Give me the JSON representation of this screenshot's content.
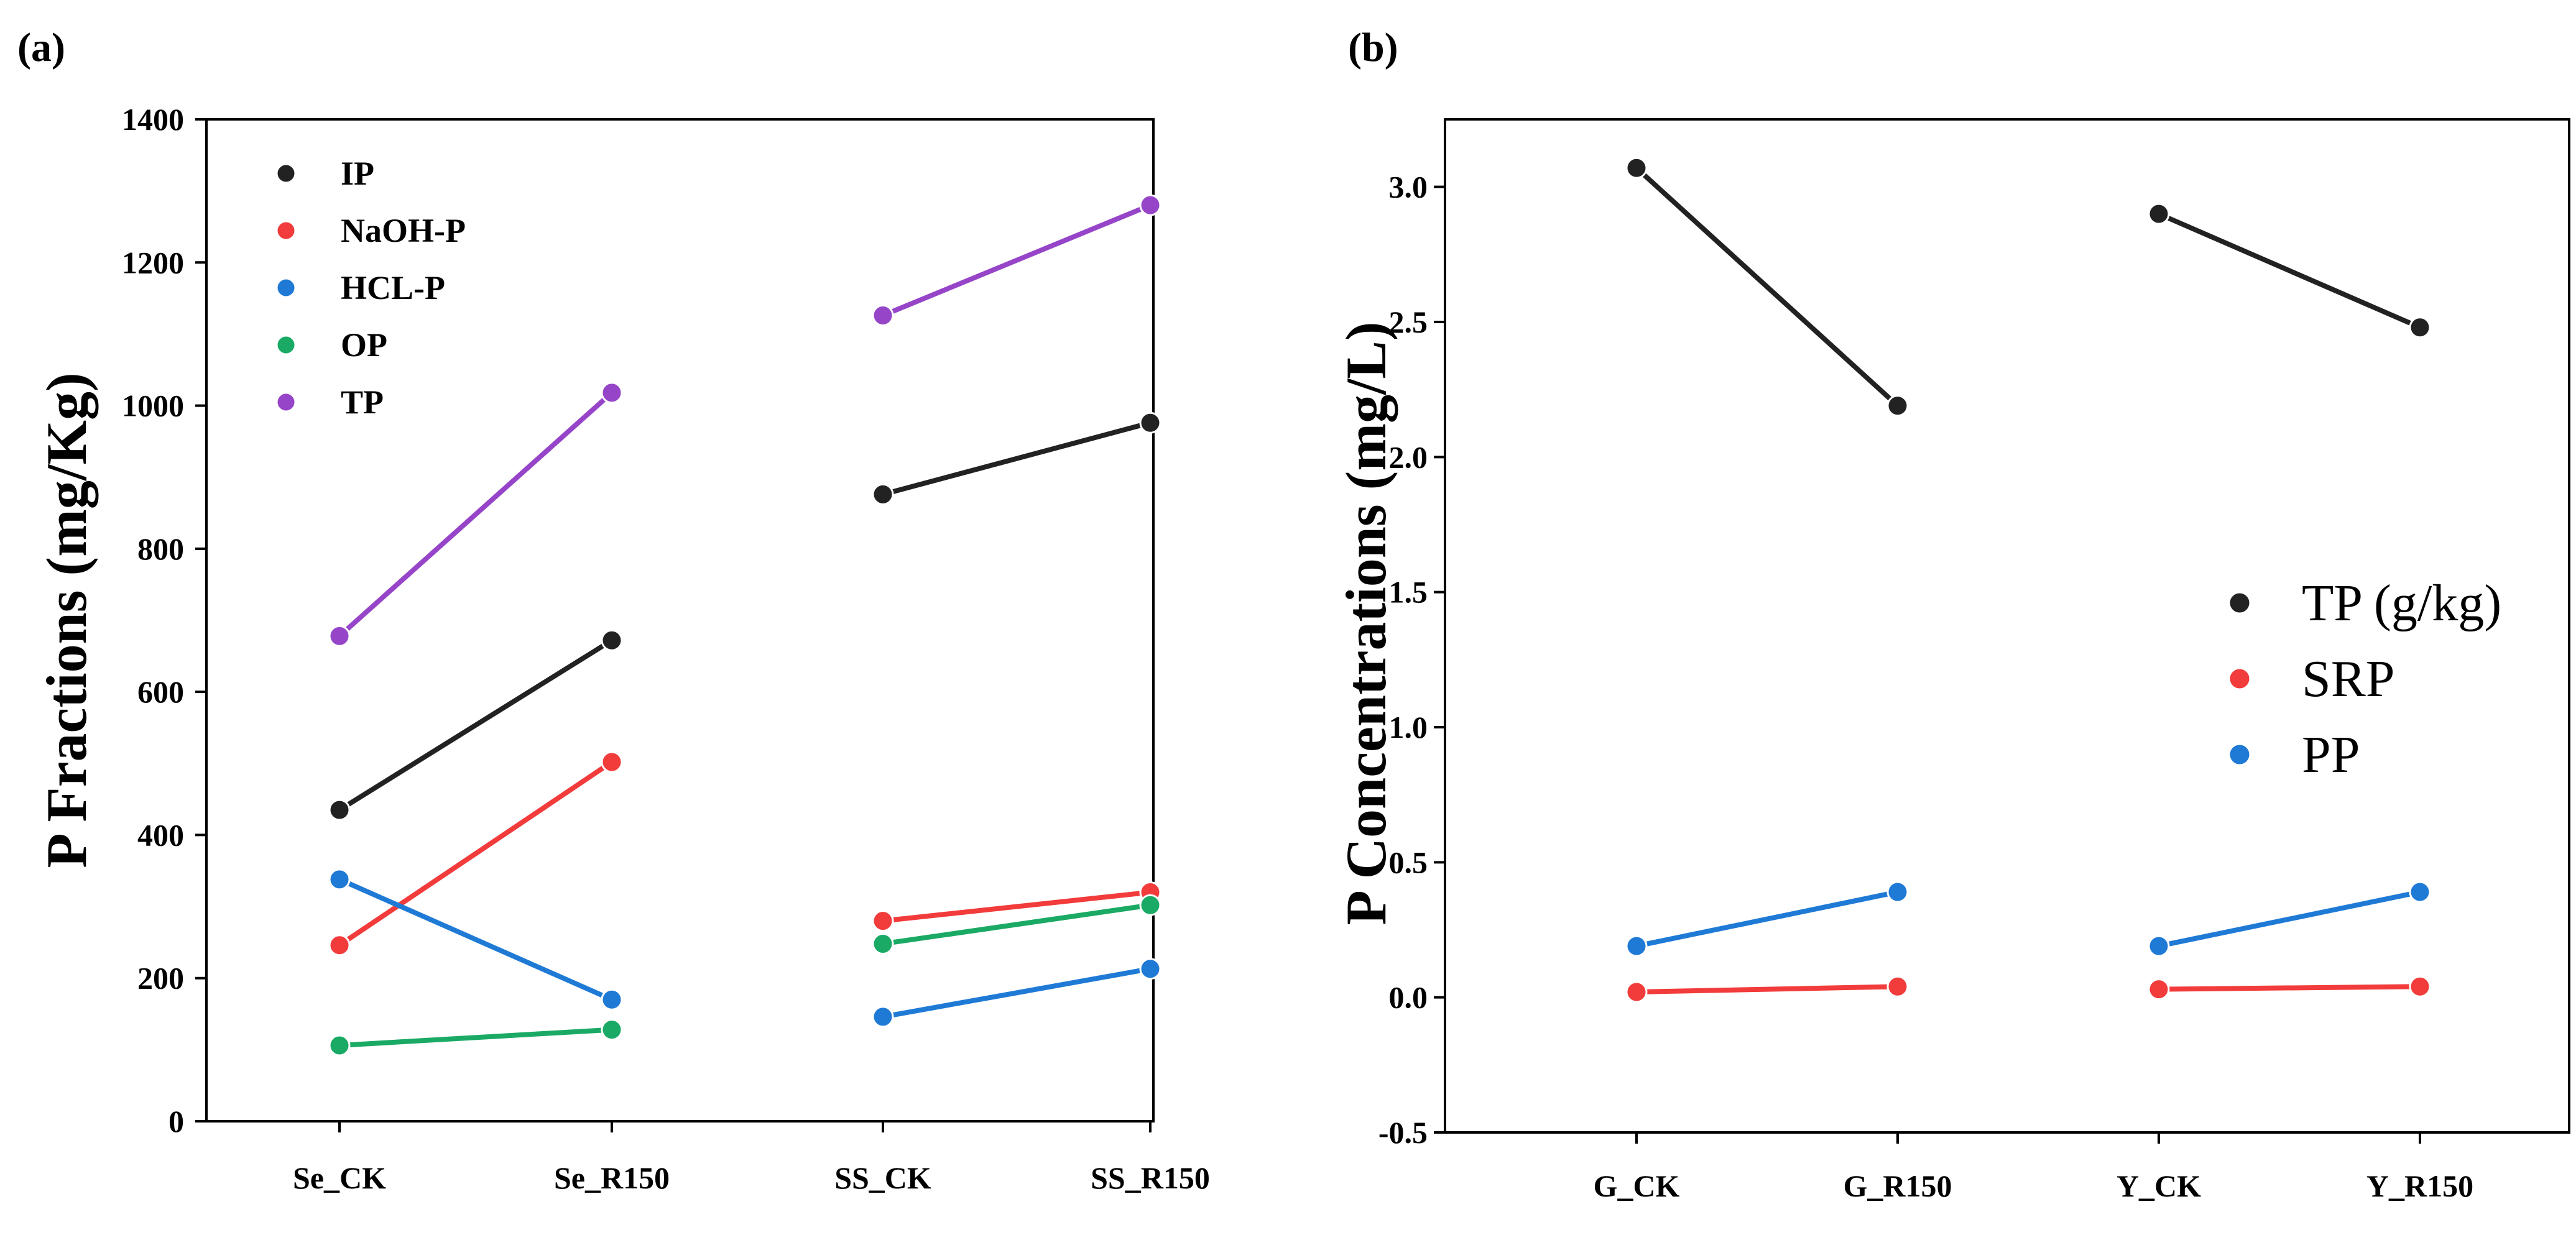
{
  "chart_data": [
    {
      "panel_label": "(a)",
      "type": "line",
      "title": "",
      "xlabel": "",
      "ylabel": "P Fractions  (mg/Kg)",
      "ylim": [
        0,
        1400
      ],
      "yticks": [
        0,
        200,
        400,
        600,
        800,
        1000,
        1200,
        1400
      ],
      "categories": [
        "Se_CK",
        "Se_R150",
        "SS_CK",
        "SS_R150"
      ],
      "segments": [
        [
          0,
          1
        ],
        [
          2,
          3
        ]
      ],
      "legend_position": "top-left",
      "series": [
        {
          "name": "IP",
          "color": "#222222",
          "values": [
            435,
            672,
            876,
            976
          ]
        },
        {
          "name": "NaOH-P",
          "color": "#f23b3b",
          "values": [
            246,
            502,
            280,
            320
          ]
        },
        {
          "name": "HCL-P",
          "color": "#1f7ad6",
          "values": [
            338,
            170,
            146,
            213
          ]
        },
        {
          "name": "OP",
          "color": "#1aaa65",
          "values": [
            106,
            128,
            248,
            302
          ]
        },
        {
          "name": "TP",
          "color": "#9645c9",
          "values": [
            678,
            1018,
            1126,
            1280
          ]
        }
      ]
    },
    {
      "panel_label": "(b)",
      "type": "line",
      "title": "",
      "xlabel": "",
      "ylabel": "P Concentrations (mg/L)",
      "ylim": [
        -0.5,
        3.25
      ],
      "yticks": [
        "-0.5",
        "0.0",
        "0.5",
        "1.0",
        "1.5",
        "2.0",
        "2.5",
        "3.0"
      ],
      "categories": [
        "G_CK",
        "G_R150",
        "Y_CK",
        "Y_R150"
      ],
      "segments": [
        [
          0,
          1
        ],
        [
          2,
          3
        ]
      ],
      "legend_position": "center-right",
      "series": [
        {
          "name": "TP (g/kg)",
          "color": "#222222",
          "values": [
            3.07,
            2.19,
            2.9,
            2.48
          ]
        },
        {
          "name": "SRP",
          "color": "#f23b3b",
          "values": [
            0.02,
            0.04,
            0.03,
            0.04
          ]
        },
        {
          "name": "PP",
          "color": "#1f7ad6",
          "values": [
            0.19,
            0.39,
            0.19,
            0.39
          ]
        }
      ]
    }
  ]
}
